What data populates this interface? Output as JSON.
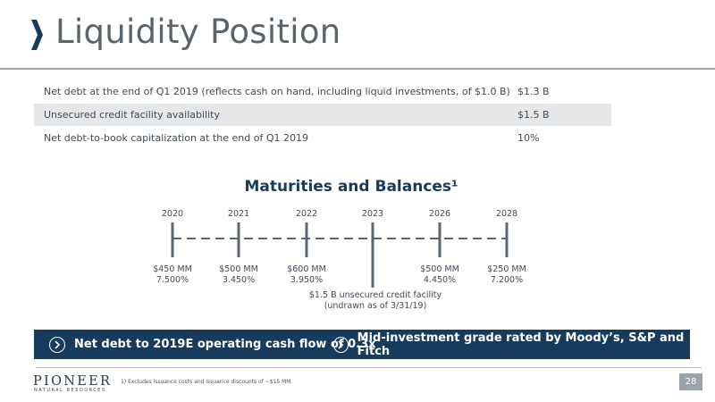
{
  "header": {
    "title": "Liquidity Position"
  },
  "summary": [
    {
      "label": "Net debt at the end of Q1 2019 (reflects cash on hand, including liquid investments, of $1.0 B)",
      "value": "$1.3 B"
    },
    {
      "label": "Unsecured credit facility availability",
      "value": "$1.5 B"
    },
    {
      "label": "Net debt-to-book capitalization at the end of Q1 2019",
      "value": "10%"
    }
  ],
  "maturities": {
    "title": "Maturities and Balances¹",
    "items": [
      {
        "year": "2020",
        "amount": "$450 MM",
        "rate": "7.500%"
      },
      {
        "year": "2021",
        "amount": "$500 MM",
        "rate": "3.450%"
      },
      {
        "year": "2022",
        "amount": "$600 MM",
        "rate": "3.950%"
      },
      {
        "year": "2023",
        "amount": "",
        "rate": ""
      },
      {
        "year": "2026",
        "amount": "$500 MM",
        "rate": "4.450%"
      },
      {
        "year": "2028",
        "amount": "$250 MM",
        "rate": "7.200%"
      }
    ],
    "facility_line1": "$1.5 B unsecured credit facility",
    "facility_line2": "(undrawn as of 3/31/19)"
  },
  "banner": {
    "item1": "Net debt to 2019E operating cash flow of 0.3x",
    "item2": "Mid-investment grade rated by Moody’s, S&P and Fitch"
  },
  "footer": {
    "logo_main": "PIONEER",
    "logo_sub": "NATURAL RESOURCES",
    "footnote": "1) Excludes issuance costs and issuance discounts of ~$15 MM.",
    "page": "28"
  },
  "colors": {
    "navy": "#173b5c",
    "gray_text": "#5a646c",
    "shade": "#e6e7e8"
  }
}
